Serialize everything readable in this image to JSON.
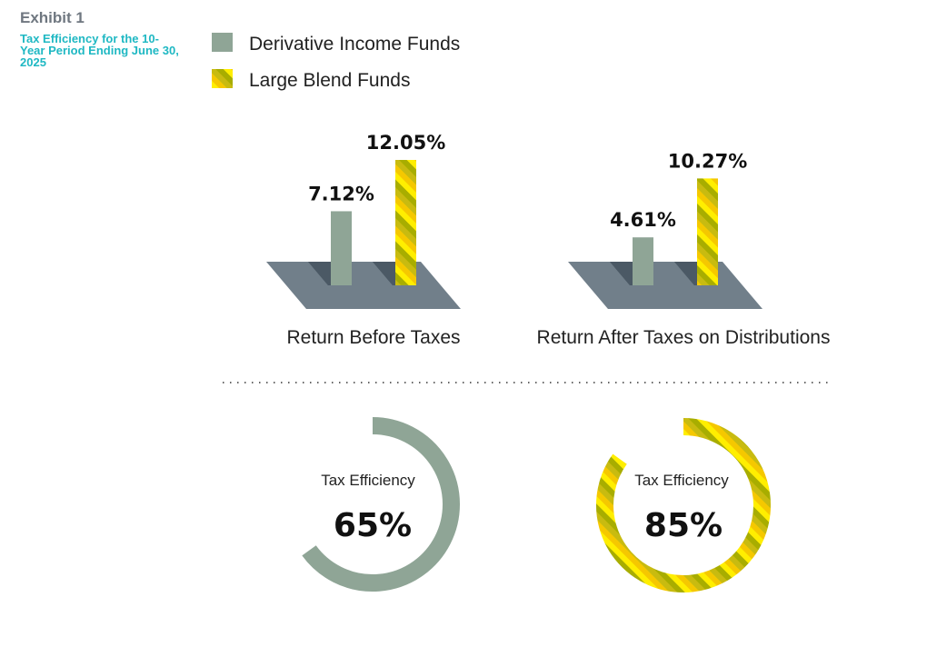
{
  "chart_data": {
    "type": "bar",
    "exhibit": "Exhibit 1",
    "title": "Tax Efficiency for the 10-Year Period Ending June 30, 2025",
    "legend": [
      {
        "name": "Derivative Income Funds",
        "color": "#8fa596"
      },
      {
        "name": "Large Blend Funds",
        "colors": [
          "#ffee00",
          "#f5c800",
          "#c8bb10",
          "#a8ad00"
        ]
      }
    ],
    "categories": [
      "Return Before Taxes",
      "Return After Taxes on Distributions"
    ],
    "series": [
      {
        "name": "Derivative Income Funds",
        "values": [
          7.12,
          4.61
        ],
        "labels": [
          "7.12%",
          "4.61%"
        ]
      },
      {
        "name": "Large Blend Funds",
        "values": [
          12.05,
          10.27
        ],
        "labels": [
          "12.05%",
          "10.27%"
        ]
      }
    ],
    "ylim": [
      0,
      14
    ],
    "tax_efficiency": {
      "label": "Tax Efficiency",
      "items": [
        {
          "series": "Derivative Income Funds",
          "value": 65,
          "label": "65%"
        },
        {
          "series": "Large Blend Funds",
          "value": 85,
          "label": "85%"
        }
      ]
    }
  }
}
